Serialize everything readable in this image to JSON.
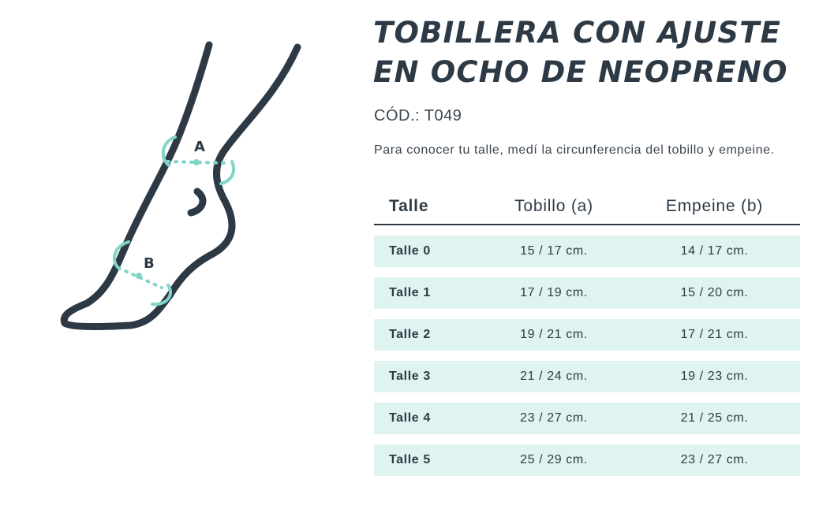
{
  "title": [
    "TOBILLERA CON AJUSTE",
    "EN OCHO DE NEOPRENO"
  ],
  "code": "CÓD.: T049",
  "description": "Para conocer tu talle, medí la circunferencia del tobillo y empeine.",
  "diagram": {
    "labels": [
      "A",
      "B"
    ]
  },
  "table": {
    "header": [
      "Talle",
      "Tobillo (a)",
      "Empeine (b)"
    ],
    "rows": [
      [
        "Talle 0",
        "15 / 17 cm.",
        "14 / 17 cm."
      ],
      [
        "Talle 1",
        "17 / 19 cm.",
        "15 / 20 cm."
      ],
      [
        "Talle 2",
        "19 / 21 cm.",
        "17 / 21 cm."
      ],
      [
        "Talle 3",
        "21 / 24 cm.",
        "19 / 23 cm."
      ],
      [
        "Talle 4",
        "23 / 27 cm.",
        "21 / 25 cm."
      ],
      [
        "Talle 5",
        "25 / 29 cm.",
        "23 / 27 cm."
      ]
    ]
  }
}
